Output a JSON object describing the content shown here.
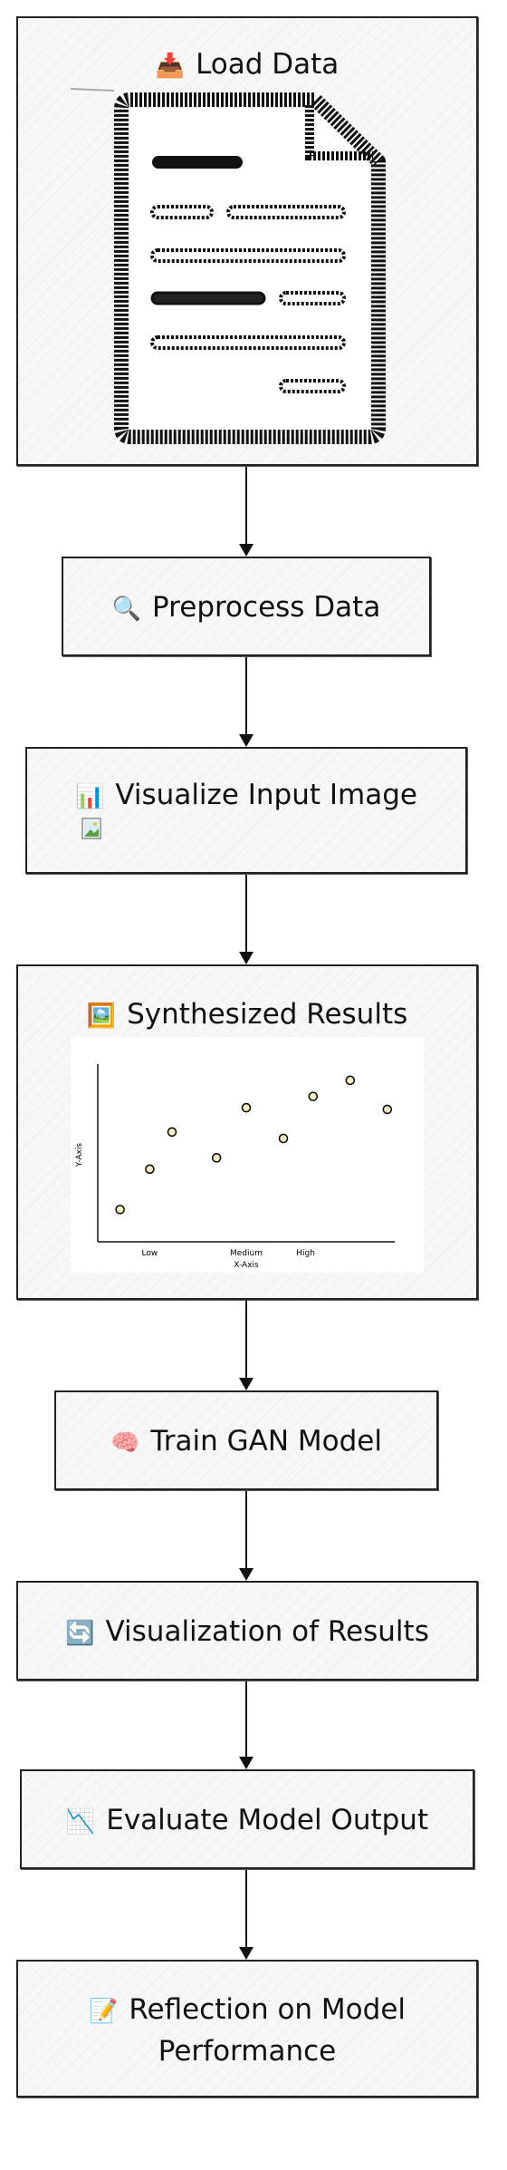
{
  "nodes": {
    "load": {
      "label": "Load Data",
      "icon": "inbox-tray-icon",
      "emoji": "📥"
    },
    "preprocess": {
      "label": "Preprocess Data",
      "icon": "magnifier-icon",
      "emoji": "🔍"
    },
    "visualize": {
      "label": "Visualize Input Image",
      "icon": "bar-chart-icon",
      "emoji": "📊"
    },
    "synth": {
      "label": "Synthesized Results",
      "icon": "framed-picture-icon",
      "emoji": "🖼️"
    },
    "train": {
      "label": "Train GAN Model",
      "icon": "brain-icon",
      "emoji": "🧠"
    },
    "vizres": {
      "label": "Visualization of Results",
      "icon": "refresh-icon",
      "emoji": "🔄"
    },
    "evaluate": {
      "label": "Evaluate Model Output",
      "icon": "chart-decreasing-icon",
      "emoji": "📉"
    },
    "reflect": {
      "label_line1": "Reflection on Model",
      "label_line2": "Performance",
      "icon": "memo-icon",
      "emoji": "📝"
    }
  },
  "chart_data": {
    "type": "scatter",
    "categories": [
      "Low",
      "Medium",
      "High"
    ],
    "xlabel": "X-Axis",
    "ylabel": "Y-Axis",
    "points": [
      {
        "x": 0.3,
        "y": 2
      },
      {
        "x": 0.7,
        "y": 4.5
      },
      {
        "x": 1.0,
        "y": 6.8
      },
      {
        "x": 1.6,
        "y": 5.2
      },
      {
        "x": 2.0,
        "y": 8.3
      },
      {
        "x": 2.5,
        "y": 6.4
      },
      {
        "x": 2.9,
        "y": 9.0
      },
      {
        "x": 3.4,
        "y": 10.0
      },
      {
        "x": 3.9,
        "y": 8.2
      }
    ]
  }
}
